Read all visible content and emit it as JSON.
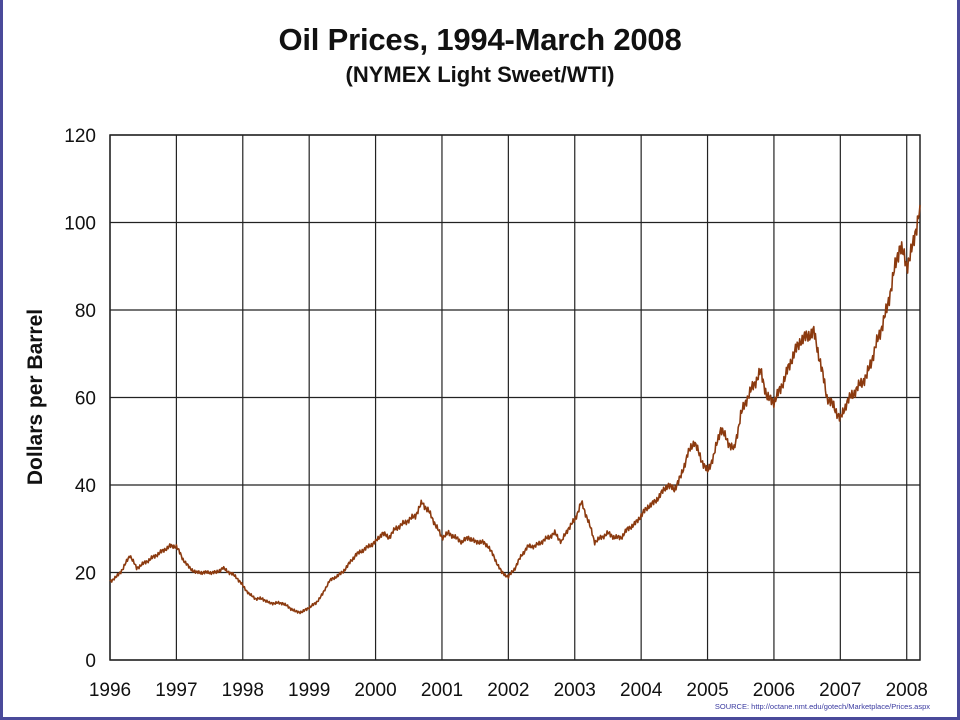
{
  "chart_data": {
    "type": "line",
    "title": "Oil Prices, 1994-March 2008",
    "subtitle": "(NYMEX Light Sweet/WTI)",
    "xlabel": "",
    "ylabel": "Dollars per Barrel",
    "xlim": [
      1996.0,
      2008.2
    ],
    "ylim": [
      0,
      120
    ],
    "x_ticks": [
      "1996",
      "1997",
      "1998",
      "1999",
      "2000",
      "2001",
      "2002",
      "2003",
      "2004",
      "2005",
      "2006",
      "2007",
      "2008"
    ],
    "y_ticks": [
      "0",
      "20",
      "40",
      "60",
      "80",
      "100",
      "120"
    ],
    "grid": true,
    "legend": "none",
    "source": "SOURCE: http://octane.nmt.edu/gotech/Marketplace/Prices.aspx",
    "series": [
      {
        "color": "#8b3a0f",
        "x": [
          1996.0,
          1996.1,
          1996.2,
          1996.3,
          1996.4,
          1996.5,
          1996.6,
          1996.7,
          1996.8,
          1996.9,
          1997.0,
          1997.1,
          1997.2,
          1997.3,
          1997.4,
          1997.5,
          1997.6,
          1997.7,
          1997.8,
          1997.9,
          1998.0,
          1998.1,
          1998.2,
          1998.3,
          1998.4,
          1998.5,
          1998.6,
          1998.7,
          1998.8,
          1998.9,
          1999.0,
          1999.1,
          1999.2,
          1999.3,
          1999.4,
          1999.5,
          1999.6,
          1999.7,
          1999.8,
          1999.9,
          2000.0,
          2000.1,
          2000.2,
          2000.3,
          2000.4,
          2000.5,
          2000.6,
          2000.7,
          2000.8,
          2000.9,
          2001.0,
          2001.1,
          2001.2,
          2001.3,
          2001.4,
          2001.5,
          2001.6,
          2001.7,
          2001.8,
          2001.9,
          2002.0,
          2002.1,
          2002.2,
          2002.3,
          2002.4,
          2002.5,
          2002.6,
          2002.7,
          2002.8,
          2002.9,
          2003.0,
          2003.1,
          2003.2,
          2003.3,
          2003.4,
          2003.5,
          2003.6,
          2003.7,
          2003.8,
          2003.9,
          2004.0,
          2004.1,
          2004.2,
          2004.3,
          2004.4,
          2004.5,
          2004.6,
          2004.7,
          2004.8,
          2004.9,
          2005.0,
          2005.1,
          2005.2,
          2005.3,
          2005.4,
          2005.5,
          2005.6,
          2005.7,
          2005.8,
          2005.9,
          2006.0,
          2006.1,
          2006.2,
          2006.3,
          2006.4,
          2006.5,
          2006.6,
          2006.7,
          2006.8,
          2006.9,
          2007.0,
          2007.1,
          2007.2,
          2007.3,
          2007.4,
          2007.5,
          2007.6,
          2007.7,
          2007.8,
          2007.9,
          2008.0,
          2008.1,
          2008.2
        ],
        "y": [
          18,
          19,
          21,
          24,
          21,
          22,
          23,
          24,
          25,
          26,
          26,
          23,
          21,
          20,
          20,
          20,
          20,
          21,
          20,
          19,
          17,
          15,
          14,
          14,
          13,
          13,
          13,
          12,
          11,
          11,
          12,
          13,
          15,
          18,
          19,
          20,
          22,
          24,
          25,
          26,
          27,
          29,
          28,
          30,
          31,
          32,
          33,
          36,
          34,
          31,
          28,
          29,
          28,
          27,
          28,
          27,
          27,
          26,
          23,
          20,
          19,
          21,
          24,
          26,
          26,
          27,
          28,
          29,
          27,
          30,
          32,
          36,
          32,
          27,
          28,
          29,
          28,
          28,
          30,
          31,
          33,
          35,
          36,
          38,
          40,
          39,
          42,
          47,
          50,
          46,
          43,
          47,
          53,
          50,
          48,
          56,
          60,
          63,
          66,
          60,
          59,
          62,
          66,
          70,
          73,
          74,
          75,
          68,
          60,
          58,
          55,
          59,
          61,
          63,
          65,
          70,
          75,
          80,
          88,
          95,
          90,
          95,
          104
        ]
      }
    ]
  }
}
